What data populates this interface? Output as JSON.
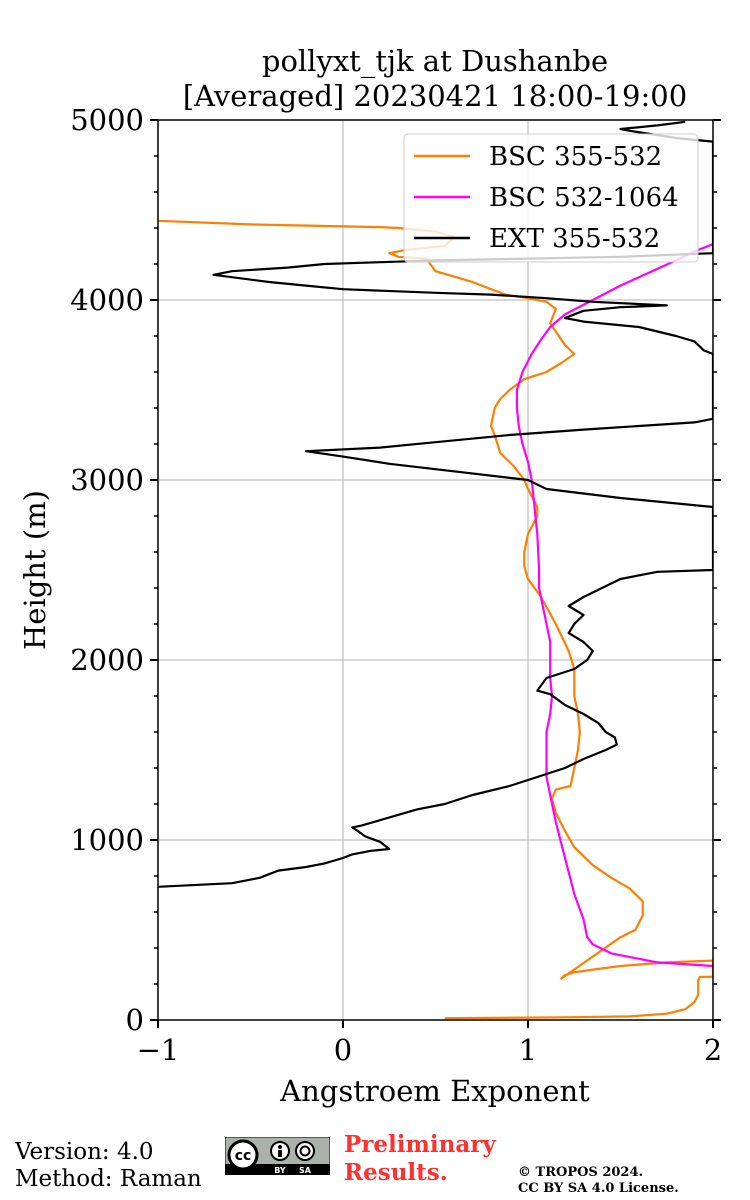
{
  "chart_data": {
    "type": "line",
    "title_line1": "pollyxt_tjk at Dushanbe",
    "title_line2": "[Averaged] 20230421 18:00-19:00",
    "xlabel": "Angstroem Exponent",
    "ylabel": "Height (m)",
    "xlim": [
      -1,
      2
    ],
    "ylim": [
      0,
      5000
    ],
    "xticks": [
      -1,
      0,
      1,
      2
    ],
    "xtick_labels": [
      "−1",
      "0",
      "1",
      "2"
    ],
    "yticks": [
      0,
      1000,
      2000,
      3000,
      4000,
      5000
    ],
    "ytick_labels": [
      "0",
      "1000",
      "2000",
      "3000",
      "4000",
      "5000"
    ],
    "grid": true,
    "legend_position": "top-right",
    "series": [
      {
        "name": "BSC 355-532",
        "color": "#ff7f00",
        "points": [
          [
            0.55,
            10
          ],
          [
            1.2,
            15
          ],
          [
            1.55,
            20
          ],
          [
            1.75,
            35
          ],
          [
            1.85,
            60
          ],
          [
            1.9,
            100
          ],
          [
            1.92,
            140
          ],
          [
            1.92,
            220
          ],
          [
            1.93,
            240
          ],
          [
            2.0,
            240
          ],
          [
            2.0,
            330
          ],
          [
            1.75,
            320
          ],
          [
            1.5,
            300
          ],
          [
            1.35,
            280
          ],
          [
            1.25,
            265
          ],
          [
            1.2,
            250
          ],
          [
            1.18,
            230
          ],
          [
            1.5,
            460
          ],
          [
            1.58,
            500
          ],
          [
            1.62,
            580
          ],
          [
            1.62,
            660
          ],
          [
            1.55,
            730
          ],
          [
            1.45,
            790
          ],
          [
            1.35,
            860
          ],
          [
            1.25,
            960
          ],
          [
            1.2,
            1050
          ],
          [
            1.15,
            1150
          ],
          [
            1.13,
            1230
          ],
          [
            1.15,
            1280
          ],
          [
            1.23,
            1300
          ],
          [
            1.25,
            1400
          ],
          [
            1.27,
            1500
          ],
          [
            1.28,
            1600
          ],
          [
            1.27,
            1700
          ],
          [
            1.25,
            1800
          ],
          [
            1.25,
            1900
          ],
          [
            1.25,
            1950
          ],
          [
            1.22,
            2050
          ],
          [
            1.15,
            2200
          ],
          [
            1.07,
            2350
          ],
          [
            1.0,
            2450
          ],
          [
            0.98,
            2520
          ],
          [
            0.98,
            2600
          ],
          [
            1.0,
            2700
          ],
          [
            1.05,
            2800
          ],
          [
            1.05,
            2850
          ],
          [
            1.0,
            2950
          ],
          [
            0.98,
            3000
          ],
          [
            0.92,
            3080
          ],
          [
            0.85,
            3150
          ],
          [
            0.82,
            3250
          ],
          [
            0.8,
            3300
          ],
          [
            0.82,
            3400
          ],
          [
            0.85,
            3450
          ],
          [
            0.9,
            3500
          ],
          [
            0.98,
            3560
          ],
          [
            1.1,
            3600
          ],
          [
            1.18,
            3650
          ],
          [
            1.25,
            3700
          ],
          [
            1.2,
            3750
          ],
          [
            1.12,
            3870
          ],
          [
            1.15,
            3950
          ],
          [
            1.1,
            3990
          ],
          [
            1.0,
            4010
          ],
          [
            0.88,
            4030
          ],
          [
            0.8,
            4060
          ],
          [
            0.7,
            4100
          ],
          [
            0.6,
            4130
          ],
          [
            0.5,
            4160
          ],
          [
            0.45,
            4230
          ],
          [
            0.3,
            4240
          ],
          [
            0.25,
            4260
          ],
          [
            0.35,
            4280
          ],
          [
            0.55,
            4300
          ],
          [
            0.6,
            4350
          ],
          [
            0.5,
            4380
          ],
          [
            0.3,
            4400
          ],
          [
            0.2,
            4405
          ],
          [
            -0.5,
            4420
          ],
          [
            -1.0,
            4440
          ]
        ]
      },
      {
        "name": "BSC 532-1064",
        "color": "#ff00ff",
        "points": [
          [
            2.0,
            300
          ],
          [
            1.7,
            320
          ],
          [
            1.45,
            370
          ],
          [
            1.35,
            420
          ],
          [
            1.32,
            460
          ],
          [
            1.3,
            560
          ],
          [
            1.25,
            700
          ],
          [
            1.2,
            900
          ],
          [
            1.15,
            1100
          ],
          [
            1.12,
            1250
          ],
          [
            1.1,
            1350
          ],
          [
            1.1,
            1500
          ],
          [
            1.1,
            1600
          ],
          [
            1.12,
            1700
          ],
          [
            1.13,
            1800
          ],
          [
            1.12,
            1900
          ],
          [
            1.12,
            2000
          ],
          [
            1.12,
            2100
          ],
          [
            1.1,
            2200
          ],
          [
            1.08,
            2300
          ],
          [
            1.06,
            2400
          ],
          [
            1.06,
            2500
          ],
          [
            1.05,
            2700
          ],
          [
            1.04,
            2800
          ],
          [
            1.03,
            2900
          ],
          [
            1.02,
            3000
          ],
          [
            1.0,
            3100
          ],
          [
            0.97,
            3200
          ],
          [
            0.95,
            3300
          ],
          [
            0.94,
            3400
          ],
          [
            0.94,
            3500
          ],
          [
            0.97,
            3600
          ],
          [
            1.02,
            3700
          ],
          [
            1.07,
            3780
          ],
          [
            1.12,
            3850
          ],
          [
            1.2,
            3920
          ],
          [
            1.35,
            4000
          ],
          [
            1.5,
            4080
          ],
          [
            1.65,
            4150
          ],
          [
            1.8,
            4220
          ],
          [
            1.9,
            4270
          ],
          [
            2.0,
            4310
          ]
        ]
      },
      {
        "name": "EXT 355-532",
        "color": "#000000",
        "points": [
          [
            -1.0,
            740
          ],
          [
            -0.6,
            760
          ],
          [
            -0.45,
            790
          ],
          [
            -0.4,
            810
          ],
          [
            -0.35,
            830
          ],
          [
            -0.2,
            850
          ],
          [
            -0.1,
            870
          ],
          [
            0.0,
            900
          ],
          [
            0.05,
            920
          ],
          [
            0.15,
            940
          ],
          [
            0.25,
            950
          ],
          [
            0.2,
            990
          ],
          [
            0.12,
            1020
          ],
          [
            0.08,
            1050
          ],
          [
            0.05,
            1070
          ],
          [
            0.1,
            1080
          ],
          [
            0.3,
            1140
          ],
          [
            0.4,
            1170
          ],
          [
            0.55,
            1200
          ],
          [
            0.7,
            1250
          ],
          [
            0.9,
            1300
          ],
          [
            1.05,
            1350
          ],
          [
            1.2,
            1400
          ],
          [
            1.3,
            1450
          ],
          [
            1.42,
            1500
          ],
          [
            1.48,
            1530
          ],
          [
            1.47,
            1570
          ],
          [
            1.42,
            1600
          ],
          [
            1.38,
            1650
          ],
          [
            1.3,
            1700
          ],
          [
            1.2,
            1750
          ],
          [
            1.12,
            1810
          ],
          [
            1.05,
            1830
          ],
          [
            1.1,
            1900
          ],
          [
            1.25,
            1950
          ],
          [
            1.32,
            2000
          ],
          [
            1.35,
            2050
          ],
          [
            1.3,
            2100
          ],
          [
            1.22,
            2150
          ],
          [
            1.25,
            2200
          ],
          [
            1.3,
            2250
          ],
          [
            1.22,
            2300
          ],
          [
            1.3,
            2350
          ],
          [
            1.4,
            2400
          ],
          [
            1.5,
            2450
          ],
          [
            1.7,
            2490
          ],
          [
            2.0,
            2500
          ],
          [
            2.0,
            2850
          ],
          [
            1.5,
            2900
          ],
          [
            1.1,
            2950
          ],
          [
            1.0,
            3000
          ],
          [
            0.5,
            3060
          ],
          [
            0.25,
            3090
          ],
          [
            0.0,
            3130
          ],
          [
            -0.2,
            3160
          ],
          [
            0.2,
            3180
          ],
          [
            0.5,
            3210
          ],
          [
            0.9,
            3250
          ],
          [
            1.3,
            3280
          ],
          [
            1.6,
            3300
          ],
          [
            1.9,
            3320
          ],
          [
            2.0,
            3340
          ],
          [
            2.0,
            3700
          ],
          [
            1.95,
            3720
          ],
          [
            1.9,
            3770
          ],
          [
            1.8,
            3800
          ],
          [
            1.6,
            3850
          ],
          [
            1.3,
            3880
          ],
          [
            1.2,
            3900
          ],
          [
            1.3,
            3940
          ],
          [
            1.5,
            3960
          ],
          [
            1.75,
            3970
          ],
          [
            1.35,
            3990
          ],
          [
            1.1,
            4010
          ],
          [
            0.8,
            4030
          ],
          [
            0.5,
            4040
          ],
          [
            0.0,
            4060
          ],
          [
            -0.2,
            4080
          ],
          [
            -0.4,
            4100
          ],
          [
            -0.7,
            4140
          ],
          [
            -0.6,
            4160
          ],
          [
            -0.3,
            4180
          ],
          [
            -0.1,
            4200
          ],
          [
            0.2,
            4210
          ],
          [
            0.5,
            4220
          ],
          [
            1.0,
            4230
          ],
          [
            1.5,
            4240
          ],
          [
            2.0,
            4260
          ],
          [
            2.0,
            4880
          ],
          [
            1.8,
            4900
          ],
          [
            1.55,
            4940
          ],
          [
            1.5,
            4950
          ],
          [
            1.7,
            4970
          ],
          [
            1.85,
            4990
          ]
        ]
      }
    ]
  },
  "footer": {
    "version": "Version: 4.0",
    "method": "Method: Raman",
    "preliminary_line1": "Preliminary",
    "preliminary_line2": "Results.",
    "copyright_line1": "© TROPOS 2024.",
    "copyright_line2": "CC BY SA 4.0 License.",
    "cc_badge": {
      "main": "cc",
      "by": "BY",
      "sa": "SA"
    }
  }
}
